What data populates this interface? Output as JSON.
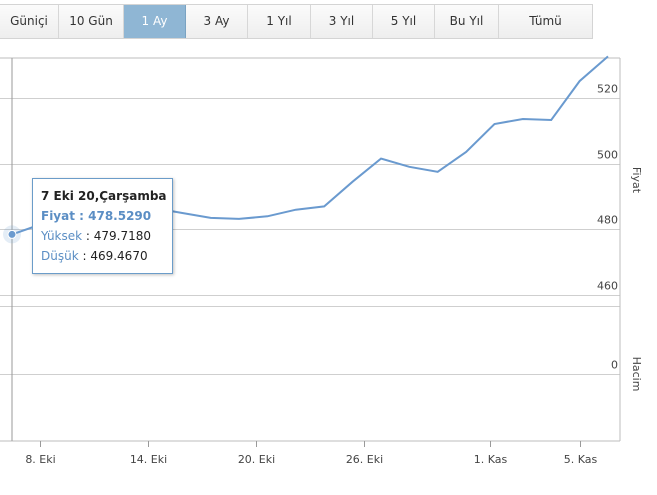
{
  "tabs": [
    {
      "label": "Güniçi",
      "active": false
    },
    {
      "label": "10 Gün",
      "active": false
    },
    {
      "label": "1 Ay",
      "active": true
    },
    {
      "label": "3 Ay",
      "active": false
    },
    {
      "label": "1 Yıl",
      "active": false
    },
    {
      "label": "3 Yıl",
      "active": false
    },
    {
      "label": "5 Yıl",
      "active": false
    },
    {
      "label": "Bu Yıl",
      "active": false
    },
    {
      "label": "Tümü",
      "active": false
    }
  ],
  "colors": {
    "line": "#6a9acf",
    "grid": "#cfcfcf",
    "active_tab": "#8fb6d4",
    "tooltip_border": "#6b9cc9"
  },
  "tooltip": {
    "title": "7 Eki 20,Çarşamba",
    "price_label": "Fiyat",
    "price_value": "478.5290",
    "high_label": "Yüksek",
    "high_value": "479.7180",
    "low_label": "Düşük",
    "low_value": "469.4670"
  },
  "chart_data": {
    "type": "line",
    "x_tick_labels": [
      "8. Eki",
      "14. Eki",
      "20. Eki",
      "26. Eki",
      "1. Kas",
      "5. Kas"
    ],
    "price_axis": {
      "title": "Fiyat",
      "ticks": [
        460,
        480,
        500,
        520
      ],
      "ylim": [
        448,
        532
      ]
    },
    "volume_axis": {
      "title": "Hacim",
      "ticks": [
        0
      ]
    },
    "series": [
      {
        "values": [
          478.5,
          481.5,
          484,
          486.5,
          488,
          486.5,
          485,
          483.5,
          483.2,
          484,
          486,
          487,
          494.5,
          501.5,
          499,
          497.5,
          503.5,
          512,
          513.5,
          513.2,
          525,
          532.5
        ],
        "highlight_index": 0
      }
    ],
    "grid": true
  }
}
